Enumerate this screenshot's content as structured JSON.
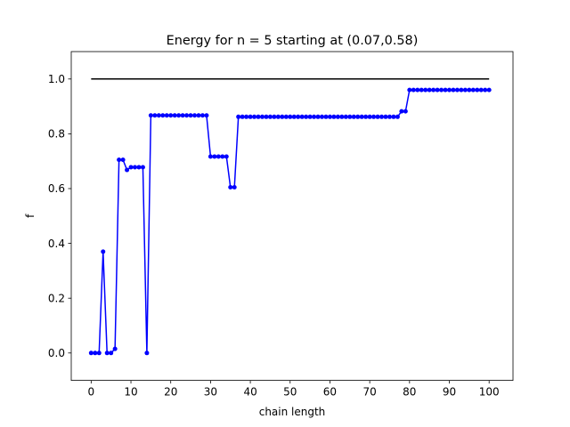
{
  "chart_data": {
    "type": "line",
    "title": "Energy for n = 5 starting at (0.07,0.58)",
    "xlabel": "chain length",
    "ylabel": "f",
    "xlim": [
      -5,
      106
    ],
    "ylim": [
      -0.1,
      1.1
    ],
    "xticks": [
      0,
      10,
      20,
      30,
      40,
      50,
      60,
      70,
      80,
      90,
      100
    ],
    "yticks": [
      0.0,
      0.2,
      0.4,
      0.6,
      0.8,
      1.0
    ],
    "ytick_labels": [
      "0.0",
      "0.2",
      "0.4",
      "0.6",
      "0.8",
      "1.0"
    ],
    "grid": false,
    "series": [
      {
        "color": "#0000ff",
        "marker": "circle",
        "x": [
          0,
          1,
          2,
          3,
          4,
          5,
          6,
          7,
          8,
          9,
          10,
          11,
          12,
          13,
          14,
          15,
          16,
          17,
          18,
          19,
          20,
          21,
          22,
          23,
          24,
          25,
          26,
          27,
          28,
          29,
          30,
          31,
          32,
          33,
          34,
          35,
          36,
          37,
          38,
          39,
          40,
          41,
          42,
          43,
          44,
          45,
          46,
          47,
          48,
          49,
          50,
          51,
          52,
          53,
          54,
          55,
          56,
          57,
          58,
          59,
          60,
          61,
          62,
          63,
          64,
          65,
          66,
          67,
          68,
          69,
          70,
          71,
          72,
          73,
          74,
          75,
          76,
          77,
          78,
          79,
          80,
          81,
          82,
          83,
          84,
          85,
          86,
          87,
          88,
          89,
          90,
          91,
          92,
          93,
          94,
          95,
          96,
          97,
          98,
          99,
          100
        ],
        "y": [
          0.0,
          0.0,
          0.0,
          0.37,
          0.0,
          0.0,
          0.015,
          0.705,
          0.705,
          0.668,
          0.678,
          0.678,
          0.678,
          0.678,
          0.0,
          0.867,
          0.867,
          0.867,
          0.867,
          0.867,
          0.867,
          0.867,
          0.867,
          0.867,
          0.867,
          0.867,
          0.867,
          0.867,
          0.867,
          0.867,
          0.717,
          0.717,
          0.717,
          0.717,
          0.717,
          0.605,
          0.605,
          0.862,
          0.862,
          0.862,
          0.862,
          0.862,
          0.862,
          0.862,
          0.862,
          0.862,
          0.862,
          0.862,
          0.862,
          0.862,
          0.862,
          0.862,
          0.862,
          0.862,
          0.862,
          0.862,
          0.862,
          0.862,
          0.862,
          0.862,
          0.862,
          0.862,
          0.862,
          0.862,
          0.862,
          0.862,
          0.862,
          0.862,
          0.862,
          0.862,
          0.862,
          0.862,
          0.862,
          0.862,
          0.862,
          0.862,
          0.862,
          0.862,
          0.882,
          0.882,
          0.96,
          0.96,
          0.96,
          0.96,
          0.96,
          0.96,
          0.96,
          0.96,
          0.96,
          0.96,
          0.96,
          0.96,
          0.96,
          0.96,
          0.96,
          0.96,
          0.96,
          0.96,
          0.96,
          0.96,
          0.96
        ]
      },
      {
        "color": "#000000",
        "marker": "none",
        "x": [
          0,
          100
        ],
        "y": [
          1.0,
          1.0
        ]
      }
    ]
  }
}
